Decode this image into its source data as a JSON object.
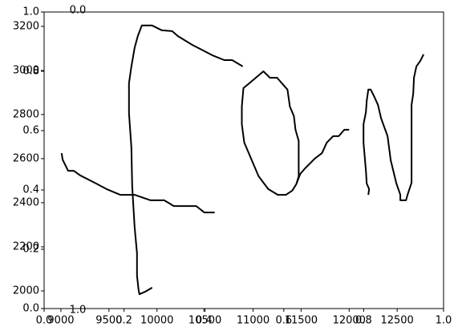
{
  "chart_data": [
    {
      "type": "line",
      "xlim": [
        8825,
        12983
      ],
      "ylim": [
        1920,
        3265
      ],
      "xticks": [
        9000,
        9500,
        10000,
        10500,
        11000,
        11500,
        12000,
        12500
      ],
      "yticks": [
        2000,
        2200,
        2400,
        2600,
        2800,
        3000,
        3200
      ],
      "series": [
        {
          "color": "#000000",
          "x": [
            9008,
            9017,
            9075,
            9133,
            9200,
            9367,
            9475,
            9617,
            9767,
            9933,
            10075,
            10175,
            10408,
            10492,
            10600
          ],
          "values": [
            2625,
            2596,
            2545,
            2545,
            2524,
            2487,
            2462,
            2436,
            2436,
            2411,
            2411,
            2385,
            2385,
            2356,
            2356
          ]
        },
        {
          "color": "#000000",
          "x": [
            9950,
            9875,
            9817,
            9808,
            9792,
            9792,
            9767,
            9742,
            9733,
            9708,
            9708,
            9733,
            9767,
            9800,
            9842,
            9950,
            10050,
            10158,
            10217,
            10367,
            10575,
            10700,
            10783,
            10892
          ],
          "values": [
            2015,
            1996,
            1985,
            2007,
            2069,
            2171,
            2291,
            2476,
            2651,
            2807,
            2942,
            3018,
            3102,
            3156,
            3204,
            3204,
            3182,
            3178,
            3156,
            3116,
            3069,
            3047,
            3047,
            3018
          ]
        },
        {
          "color": "#000000",
          "x": [
            11450,
            11475,
            11475,
            11442,
            11425,
            11383,
            11358,
            11250,
            11175,
            11108,
            10950,
            10900,
            10883,
            10883,
            10908,
            11058,
            11158,
            11258,
            11342,
            11408,
            11450,
            11492,
            11542,
            11642,
            11717,
            11767,
            11833,
            11892,
            11950,
            12000
          ],
          "values": [
            2484,
            2520,
            2680,
            2731,
            2793,
            2836,
            2913,
            2967,
            2967,
            2996,
            2938,
            2920,
            2836,
            2756,
            2673,
            2520,
            2462,
            2436,
            2436,
            2455,
            2484,
            2531,
            2556,
            2600,
            2625,
            2673,
            2702,
            2702,
            2731,
            2731
          ]
        },
        {
          "color": "#000000",
          "x": [
            12200,
            12208,
            12183,
            12175,
            12150,
            12150,
            12175,
            12183,
            12200,
            12225,
            12258,
            12300,
            12333,
            12400,
            12433,
            12492,
            12533,
            12533,
            12592,
            12608,
            12650,
            12650,
            12667,
            12675,
            12700,
            12742,
            12775
          ],
          "values": [
            2436,
            2462,
            2487,
            2545,
            2673,
            2756,
            2811,
            2862,
            2913,
            2913,
            2884,
            2844,
            2782,
            2702,
            2593,
            2487,
            2436,
            2411,
            2411,
            2436,
            2491,
            2844,
            2895,
            2967,
            3018,
            3044,
            3073
          ]
        }
      ]
    },
    {
      "type": "axis",
      "xlim": [
        0,
        1
      ],
      "ylim": [
        0,
        1
      ],
      "xticks": [
        {
          "value": 0,
          "label": "0.0"
        },
        {
          "value": 0.2,
          "label": "0.2"
        },
        {
          "value": 0.4,
          "label": "0.4"
        },
        {
          "value": 0.6,
          "label": "0.6"
        },
        {
          "value": 0.8,
          "label": "0.8"
        },
        {
          "value": 1,
          "label": "1.0"
        }
      ],
      "yticks": [
        {
          "value": 0,
          "label": "0.0"
        },
        {
          "value": 0.2,
          "label": "0.2"
        },
        {
          "value": 0.4,
          "label": "0.4"
        },
        {
          "value": 0.6,
          "label": "0.6"
        },
        {
          "value": 0.8,
          "label": "0.8"
        },
        {
          "value": 1,
          "label": "1.0"
        }
      ]
    },
    {
      "type": "stub",
      "ylim": [
        0,
        1
      ],
      "yticks": [
        {
          "value": 0,
          "label": "0.0"
        },
        {
          "value": 1,
          "label": "1.0"
        }
      ]
    }
  ]
}
